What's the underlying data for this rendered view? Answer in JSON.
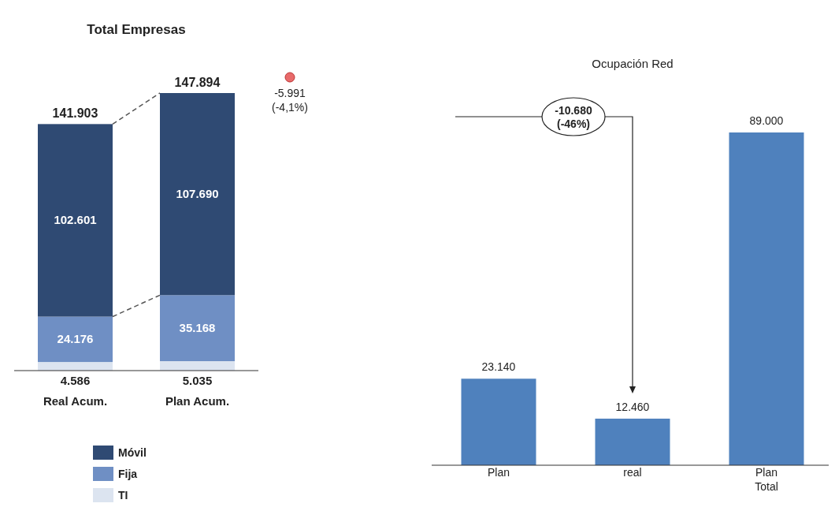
{
  "chart_data": [
    {
      "type": "bar",
      "title": "Total Empresas",
      "categories": [
        "Real Acum.",
        "Plan Acum."
      ],
      "stacked": true,
      "legend": "bottom",
      "annotations": [
        "141.903",
        "147.894",
        "-5.991 (-4,1%)"
      ],
      "series": [
        {
          "name": "TI",
          "color": "#dce4f0",
          "values": [
            4586,
            5035
          ],
          "value_labels": [
            "4.586",
            "5.035"
          ]
        },
        {
          "name": "Fija",
          "color": "#6f8fc4",
          "values": [
            24176,
            35168
          ],
          "value_labels": [
            "24.176",
            "35.168"
          ]
        },
        {
          "name": "Móvil",
          "color": "#2f4a73",
          "values": [
            102601,
            107690
          ],
          "value_labels": [
            "102.601",
            "107.690"
          ]
        }
      ]
    },
    {
      "type": "bar",
      "title": "Ocupación Red",
      "categories": [
        "Plan",
        "real",
        "Plan Total"
      ],
      "values": [
        23140,
        12460,
        89000
      ],
      "value_labels": [
        "23.140",
        "12.460",
        "89.000"
      ],
      "color": "#4f81bd",
      "legend": false,
      "annotations": [
        "-10.680 (-46%)"
      ]
    }
  ]
}
